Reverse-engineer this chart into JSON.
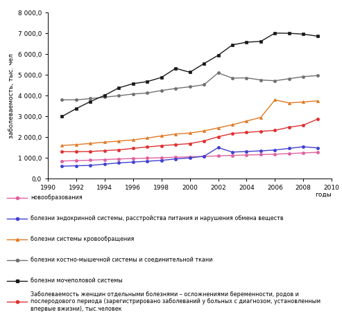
{
  "years": [
    1991,
    1992,
    1993,
    1994,
    1995,
    1996,
    1997,
    1998,
    1999,
    2000,
    2001,
    2002,
    2003,
    2004,
    2005,
    2006,
    2007,
    2008,
    2009
  ],
  "series": {
    "novoobrazovania": {
      "label": "новообразования",
      "color": "#e060a0",
      "marker": "o",
      "markersize": 3,
      "linewidth": 1.0,
      "values": [
        850,
        870,
        890,
        920,
        950,
        970,
        990,
        1010,
        1030,
        1050,
        1070,
        1100,
        1120,
        1140,
        1160,
        1180,
        1210,
        1240,
        1270
      ]
    },
    "endokrin": {
      "label": "болезни эндокринной системы, расстройства питания и нарушения обмена веществ",
      "color": "#4040d0",
      "marker": "o",
      "markersize": 3,
      "linewidth": 1.0,
      "values": [
        600,
        620,
        640,
        700,
        760,
        800,
        840,
        880,
        950,
        1000,
        1080,
        1500,
        1280,
        1310,
        1340,
        1380,
        1460,
        1540,
        1480
      ]
    },
    "krovoobrashenie": {
      "label": "болезни системы кровообращения",
      "color": "#e07820",
      "marker": "^",
      "markersize": 3,
      "linewidth": 1.0,
      "values": [
        1600,
        1640,
        1700,
        1760,
        1810,
        1870,
        1960,
        2060,
        2150,
        2200,
        2300,
        2450,
        2600,
        2780,
        2950,
        3800,
        3650,
        3700,
        3750
      ]
    },
    "kostno": {
      "label": "болезни костно-мышечной системы и соединительной ткани",
      "color": "#707070",
      "marker": "o",
      "markersize": 3,
      "linewidth": 1.0,
      "values": [
        3800,
        3800,
        3860,
        3930,
        4000,
        4080,
        4130,
        4250,
        4350,
        4430,
        4530,
        5100,
        4850,
        4860,
        4760,
        4720,
        4820,
        4920,
        4970
      ]
    },
    "mochepolov": {
      "label": "болезни мочеполовой системы",
      "color": "#181818",
      "marker": "s",
      "markersize": 3,
      "linewidth": 1.0,
      "values": [
        3000,
        3380,
        3720,
        4020,
        4380,
        4580,
        4680,
        4880,
        5320,
        5130,
        5550,
        5950,
        6450,
        6580,
        6620,
        7020,
        7010,
        6970,
        6870
      ]
    },
    "zabolevaemos": {
      "label": "Заболеваемость женщин отдельными болезнями – осложнениями беременности, родов и послеродового периода (зарегистрировано заболеваний у больных с диагнозом, установленным впервые вжизни), тыс.человек",
      "color": "#e03030",
      "marker": "o",
      "markersize": 3,
      "linewidth": 1.0,
      "values": [
        1300,
        1300,
        1310,
        1350,
        1390,
        1460,
        1530,
        1590,
        1640,
        1690,
        1820,
        2020,
        2180,
        2230,
        2280,
        2330,
        2480,
        2580,
        2870
      ]
    }
  },
  "xlabel": "годы",
  "ylabel": "заболеваемость, тыс. чел",
  "ylim": [
    0,
    8000
  ],
  "ytick_labels": [
    "0,0",
    "1 000,0",
    "2 000,0",
    "3 000,0",
    "4 000,0",
    "5 000,0",
    "6 000,0",
    "7 000,0",
    "8 000,0"
  ],
  "yticks": [
    0,
    1000,
    2000,
    3000,
    4000,
    5000,
    6000,
    7000,
    8000
  ],
  "xlim": [
    1990,
    2010
  ],
  "xticks": [
    1990,
    1992,
    1994,
    1996,
    1998,
    2000,
    2002,
    2004,
    2006,
    2008,
    2010
  ]
}
